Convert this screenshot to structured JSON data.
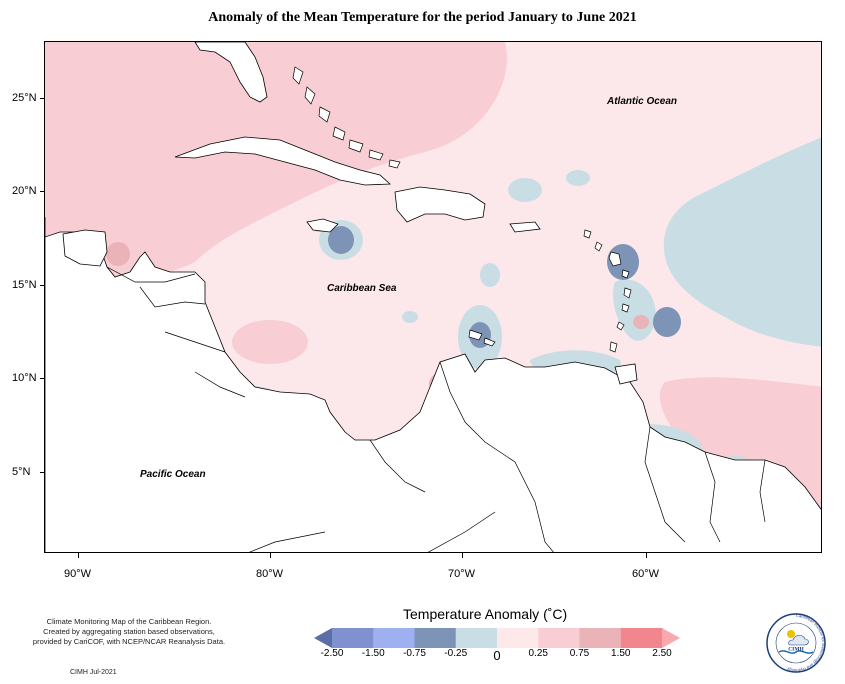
{
  "title": "Anomaly of the Mean Temperature for the period January to June 2021",
  "map": {
    "region": "Caribbean",
    "latitude_labels": [
      "25°N",
      "20°N",
      "15°N",
      "10°N",
      "5°N"
    ],
    "longitude_labels": [
      "90°W",
      "80°W",
      "70°W",
      "60°W"
    ],
    "ocean_labels": {
      "atlantic": "Atlantic Ocean",
      "caribbean": "Caribbean Sea",
      "pacific": "Pacific Ocean"
    }
  },
  "legend": {
    "title": "Temperature Anomaly (˚C)",
    "ticks": [
      "-2.50",
      "-1.50",
      "-0.75",
      "-0.25",
      "0",
      "0.25",
      "0.75",
      "1.50",
      "2.50"
    ],
    "colors": [
      "#5b6ea8",
      "#8191cf",
      "#9fb0f0",
      "#7e94b6",
      "#c9dde5",
      "#fde8ea",
      "#f8cdd3",
      "#eab3b8",
      "#f2868e",
      "#f7a9ae"
    ]
  },
  "credits": {
    "line1": "Climate Monitoring Map of the Caribbean Region.",
    "line2": "Created by aggregating station based observations,",
    "line3": "provided by CariCOF, with NCEP/NCAR Reanalysis Data.",
    "date": "CIMH Jul-2021"
  },
  "logo": {
    "text": "CIMH",
    "ring_text": "Caribbean Institute for Meteorology and Hydrology"
  }
}
